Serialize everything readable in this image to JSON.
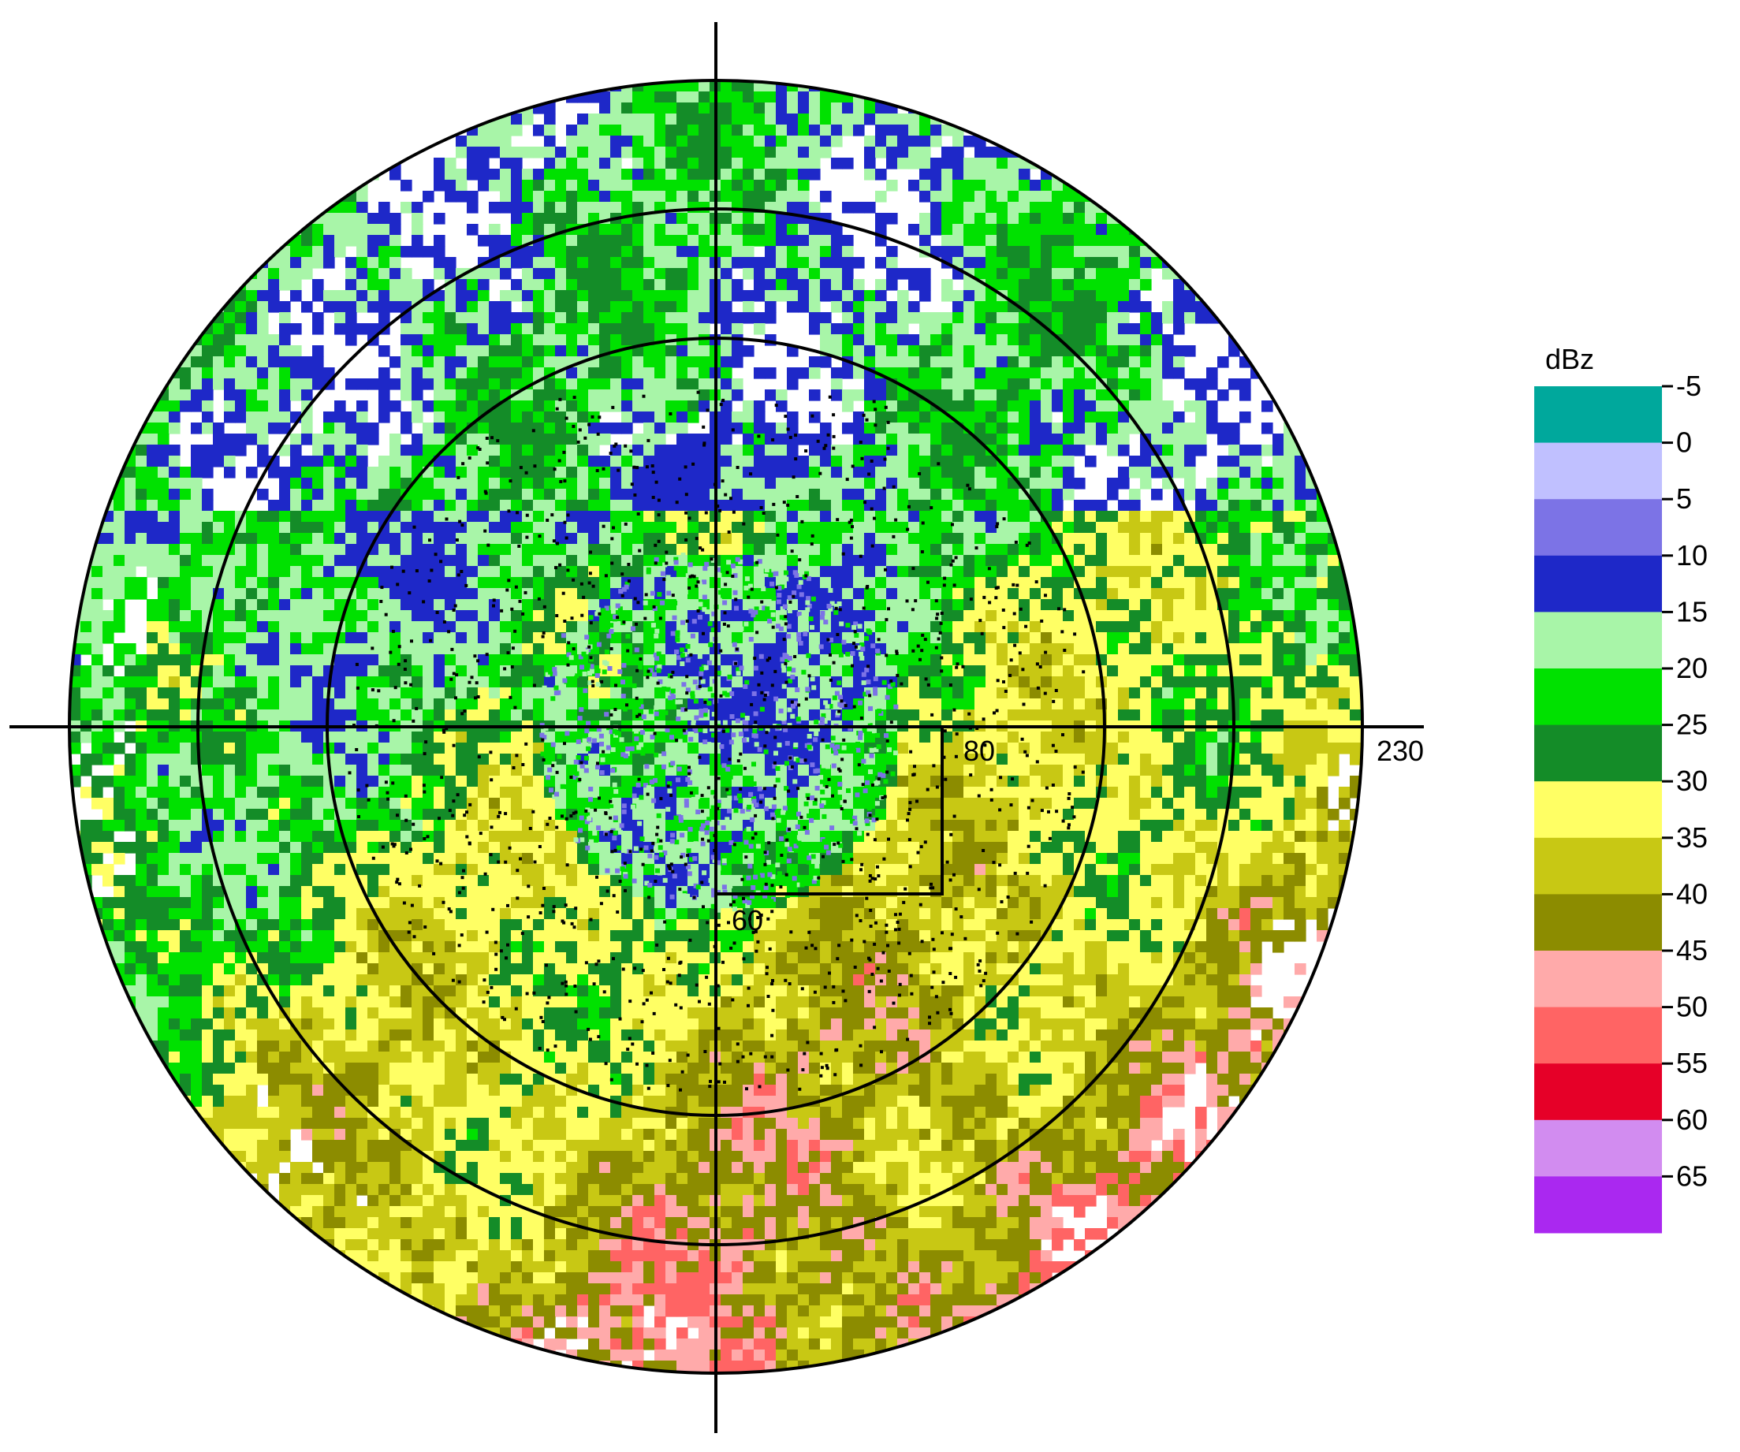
{
  "chart_data": {
    "type": "heatmap",
    "projection": "polar (PPI radar reflectivity)",
    "colorbar": {
      "title": "dBz",
      "ticks": [
        "-5",
        "0",
        "5",
        "10",
        "15",
        "20",
        "25",
        "30",
        "35",
        "40",
        "45",
        "50",
        "55",
        "60",
        "65"
      ],
      "colors": [
        "#00a89c",
        "#c0c0ff",
        "#7c73e6",
        "#1e28c8",
        "#a8f5a8",
        "#00e100",
        "#148c28",
        "#ffff64",
        "#c8c814",
        "#8c8c00",
        "#ffaaaa",
        "#ff6464",
        "#e60028",
        "#d28cf0",
        "#aa28f0"
      ]
    },
    "range_rings_labels": [
      "230"
    ],
    "box_labels": [
      "80",
      "60"
    ],
    "grid": true,
    "legend_position": "right"
  }
}
